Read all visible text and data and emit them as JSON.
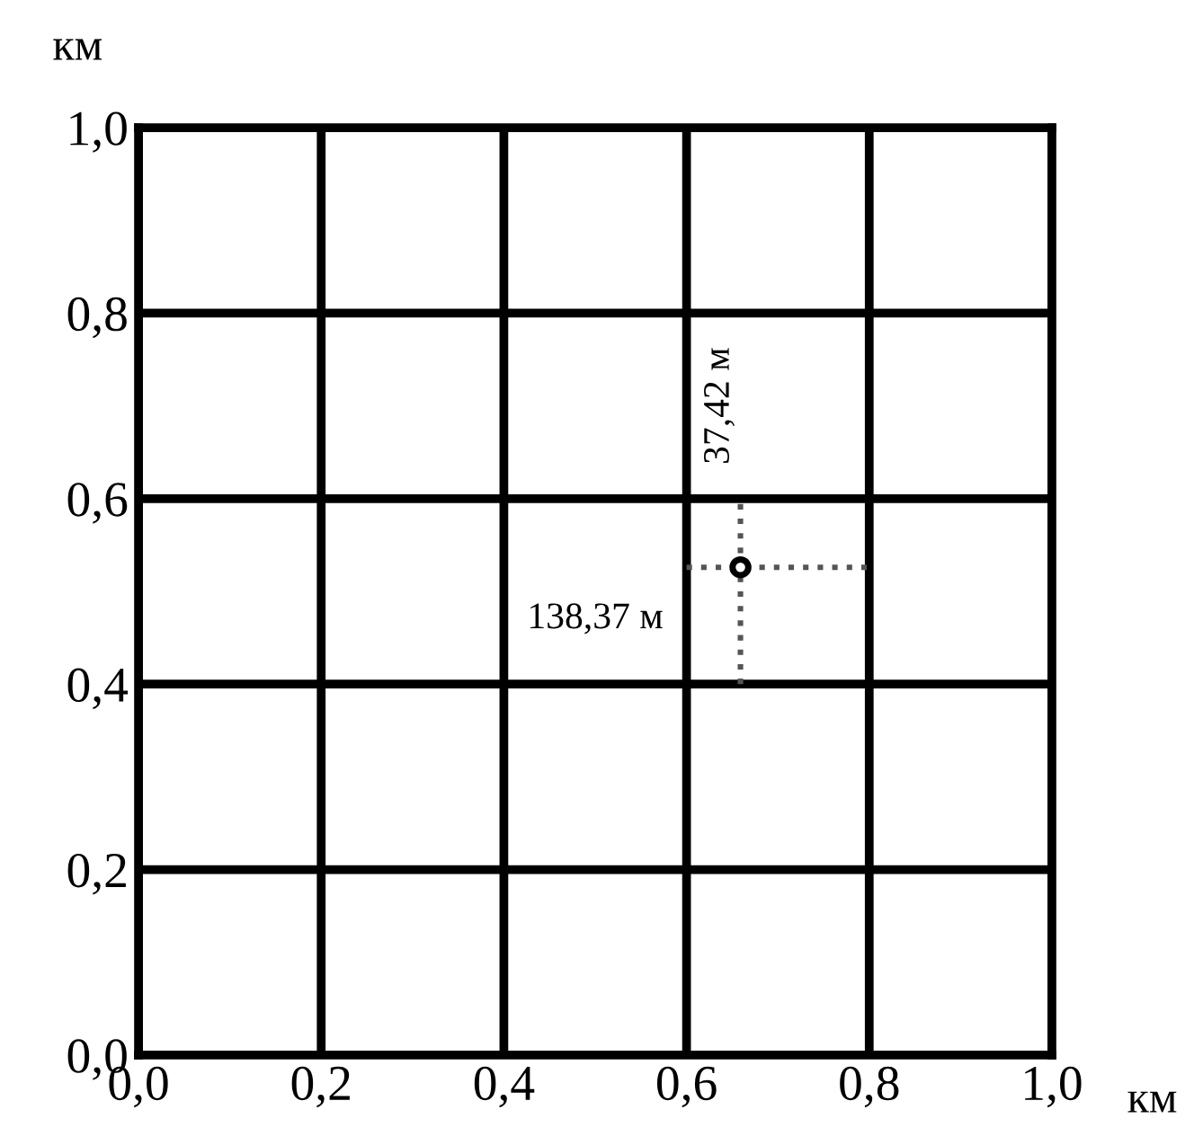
{
  "chart_data": {
    "type": "scatter",
    "xlabel": "км",
    "ylabel": "км",
    "xlim": [
      0,
      1
    ],
    "ylim": [
      0,
      1
    ],
    "xticks": [
      {
        "value": 0,
        "label": "0,0"
      },
      {
        "value": 0.2,
        "label": "0,2"
      },
      {
        "value": 0.4,
        "label": "0,4"
      },
      {
        "value": 0.6,
        "label": "0,6"
      },
      {
        "value": 0.8,
        "label": "0,8"
      },
      {
        "value": 1,
        "label": "1,0"
      }
    ],
    "yticks": [
      {
        "value": 0,
        "label": "0,0"
      },
      {
        "value": 0.2,
        "label": "0,2"
      },
      {
        "value": 0.4,
        "label": "0,4"
      },
      {
        "value": 0.6,
        "label": "0,6"
      },
      {
        "value": 0.8,
        "label": "0,8"
      },
      {
        "value": 1,
        "label": "1,0"
      }
    ],
    "grid": true,
    "series": [
      {
        "type": "line",
        "color": "#555555",
        "line_style": "dotted",
        "marker": "none",
        "x": [
          0.659,
          0.659
        ],
        "values": [
          0.4,
          0.595
        ]
      },
      {
        "type": "line",
        "color": "#555555",
        "line_style": "dotted",
        "marker": "none",
        "x": [
          0.6,
          0.8
        ],
        "values": [
          0.526,
          0.526
        ]
      },
      {
        "color": "#000000",
        "marker": "circle",
        "x": [
          0.659
        ],
        "values": [
          0.526
        ]
      }
    ],
    "annotations": [
      "37,42 м",
      "138,37 м"
    ]
  }
}
